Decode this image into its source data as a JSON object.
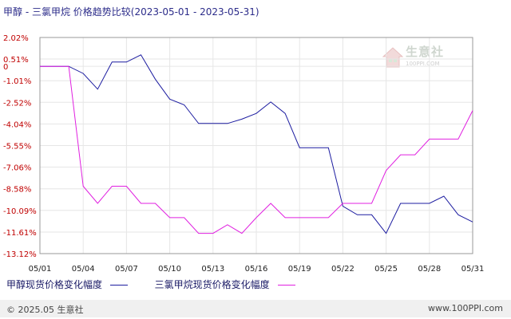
{
  "chart_data": {
    "type": "line",
    "title": "甲醇 - 三氯甲烷 价格趋势比较(2023-05-01 - 2023-05-31)",
    "x": [
      "05/01",
      "05/02",
      "05/03",
      "05/04",
      "05/05",
      "05/06",
      "05/07",
      "05/08",
      "05/09",
      "05/10",
      "05/11",
      "05/12",
      "05/13",
      "05/14",
      "05/15",
      "05/16",
      "05/17",
      "05/18",
      "05/19",
      "05/20",
      "05/21",
      "05/22",
      "05/23",
      "05/24",
      "05/25",
      "05/26",
      "05/27",
      "05/28",
      "05/29",
      "05/30",
      "05/31"
    ],
    "x_ticks": [
      "05/01",
      "05/04",
      "05/07",
      "05/10",
      "05/13",
      "05/16",
      "05/19",
      "05/22",
      "05/25",
      "05/28",
      "05/31"
    ],
    "y_ticks": [
      "2.02%",
      "0.51%",
      "0",
      "-1.01%",
      "-2.52%",
      "-4.04%",
      "-5.55%",
      "-7.06%",
      "-8.58%",
      "-10.09%",
      "-11.61%",
      "-13.12%"
    ],
    "y_tick_values": [
      2.02,
      0.51,
      0,
      -1.01,
      -2.52,
      -4.04,
      -5.55,
      -7.06,
      -8.58,
      -10.09,
      -11.61,
      -13.12
    ],
    "ylim": [
      -13.12,
      2.02
    ],
    "grid": true,
    "legend_position": "bottom",
    "series": [
      {
        "name": "甲醇现货价格变化幅度",
        "color": "#1c1ca0",
        "values": [
          0,
          0,
          0,
          -0.5,
          -1.6,
          0.3,
          0.3,
          0.8,
          -0.9,
          -2.3,
          -2.7,
          -4.0,
          -4.0,
          -4.0,
          -3.7,
          -3.3,
          -2.5,
          -3.3,
          -5.7,
          -5.7,
          -5.7,
          -9.8,
          -10.4,
          -10.4,
          -11.7,
          -9.6,
          -9.6,
          -9.6,
          -9.1,
          -10.4,
          -10.9
        ]
      },
      {
        "name": "三氯甲烷现货价格变化幅度",
        "color": "#e020e0",
        "values": [
          0,
          0,
          0,
          -8.4,
          -9.6,
          -8.4,
          -8.4,
          -9.6,
          -9.6,
          -10.6,
          -10.6,
          -11.7,
          -11.7,
          -11.1,
          -11.7,
          -10.6,
          -9.6,
          -10.6,
          -10.6,
          -10.6,
          -10.6,
          -9.6,
          -9.6,
          -9.6,
          -7.3,
          -6.2,
          -6.2,
          -5.1,
          -5.1,
          -5.1,
          -3.1
        ]
      }
    ]
  },
  "watermark": {
    "text": "生意社",
    "sub": "100PPI.COM"
  },
  "footer": {
    "left": "© 2025.05 生意社",
    "right": "www.100PPI.com"
  }
}
